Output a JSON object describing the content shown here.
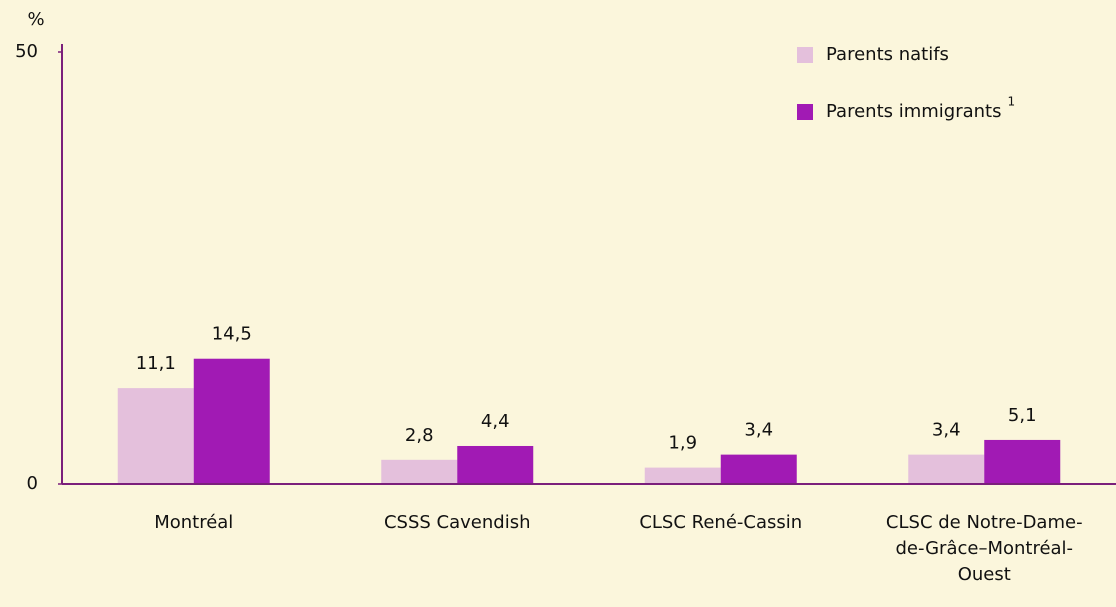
{
  "chart_data": {
    "type": "bar",
    "y_label": "%",
    "categories": [
      "Montréal",
      "CSSS Cavendish",
      "CLSC René-Cassin",
      "CLSC de Notre-Dame-de-Grâce–Montréal-Ouest"
    ],
    "series": [
      {
        "name": "Parents natifs",
        "color": "#e4c0dc",
        "values": [
          11.1,
          2.8,
          1.9,
          3.4
        ],
        "value_labels": [
          "11,1",
          "2,8",
          "1,9",
          "3,4"
        ]
      },
      {
        "name": "Parents immigrants",
        "footnote_marker": "1",
        "color": "#a11ab4",
        "values": [
          14.5,
          4.4,
          3.4,
          5.1
        ],
        "value_labels": [
          "14,5",
          "4,4",
          "3,4",
          "5,1"
        ]
      }
    ],
    "ylim": [
      0,
      50
    ],
    "yticks": [
      0,
      50
    ],
    "axis_color": "#7b1f7b",
    "legend": "upper right"
  }
}
